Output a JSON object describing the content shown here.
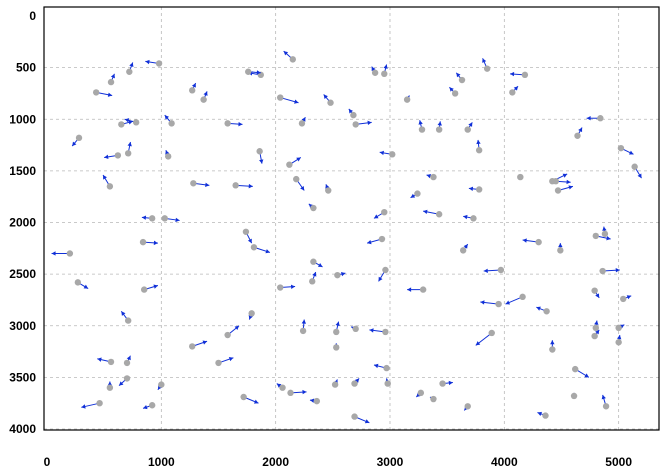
{
  "chart_data": {
    "type": "scatter",
    "title": "",
    "xlabel": "",
    "ylabel": "",
    "xlim": [
      0,
      5400
    ],
    "ylim": [
      4050,
      0
    ],
    "y_inverted": true,
    "grid": true,
    "x_ticks": [
      0,
      1000,
      2000,
      3000,
      4000,
      5000
    ],
    "x_tick_labels": [
      "0",
      "1000",
      "2000",
      "3000",
      "4000",
      "5000"
    ],
    "y_ticks": [
      0,
      500,
      1000,
      1500,
      2000,
      2500,
      3000,
      3500,
      4000
    ],
    "y_tick_labels": [
      "0",
      "500",
      "1000",
      "1500",
      "2000",
      "2500",
      "3000",
      "3500",
      "4000"
    ],
    "colors": {
      "marker": "#a8a8a8",
      "arrow": "#1030d8",
      "grid": "#b8b8b8",
      "frame": "#000000"
    },
    "points": [
      {
        "x": 980,
        "y": 460,
        "dx": -120,
        "dy": -20
      },
      {
        "x": 2150,
        "y": 420,
        "dx": -80,
        "dy": -80
      },
      {
        "x": 2950,
        "y": 560,
        "dx": 20,
        "dy": -90
      },
      {
        "x": 3850,
        "y": 510,
        "dx": -40,
        "dy": -100
      },
      {
        "x": 4180,
        "y": 570,
        "dx": -130,
        "dy": -10
      },
      {
        "x": 720,
        "y": 540,
        "dx": 30,
        "dy": -90
      },
      {
        "x": 560,
        "y": 640,
        "dx": 30,
        "dy": -80
      },
      {
        "x": 1870,
        "y": 570,
        "dx": -110,
        "dy": -20
      },
      {
        "x": 1760,
        "y": 540,
        "dx": 110,
        "dy": 10
      },
      {
        "x": 2870,
        "y": 550,
        "dx": -30,
        "dy": -60
      },
      {
        "x": 3630,
        "y": 620,
        "dx": -50,
        "dy": -70
      },
      {
        "x": 430,
        "y": 740,
        "dx": 140,
        "dy": 30
      },
      {
        "x": 1270,
        "y": 720,
        "dx": 30,
        "dy": -70
      },
      {
        "x": 1370,
        "y": 810,
        "dx": 30,
        "dy": -80
      },
      {
        "x": 2040,
        "y": 790,
        "dx": 160,
        "dy": 50
      },
      {
        "x": 2480,
        "y": 840,
        "dx": -60,
        "dy": -80
      },
      {
        "x": 3150,
        "y": 810,
        "dx": 20,
        "dy": -40
      },
      {
        "x": 3570,
        "y": 750,
        "dx": -50,
        "dy": -60
      },
      {
        "x": 4070,
        "y": 740,
        "dx": 50,
        "dy": -60
      },
      {
        "x": 650,
        "y": 1050,
        "dx": 100,
        "dy": -30
      },
      {
        "x": 780,
        "y": 1030,
        "dx": -100,
        "dy": -30
      },
      {
        "x": 1090,
        "y": 1040,
        "dx": -60,
        "dy": -80
      },
      {
        "x": 1580,
        "y": 1040,
        "dx": 130,
        "dy": 10
      },
      {
        "x": 2230,
        "y": 1040,
        "dx": 30,
        "dy": -60
      },
      {
        "x": 2680,
        "y": 960,
        "dx": -40,
        "dy": -60
      },
      {
        "x": 2700,
        "y": 1050,
        "dx": 140,
        "dy": -20
      },
      {
        "x": 3280,
        "y": 1100,
        "dx": -20,
        "dy": -90
      },
      {
        "x": 3430,
        "y": 1100,
        "dx": 10,
        "dy": -80
      },
      {
        "x": 3680,
        "y": 1100,
        "dx": 40,
        "dy": -70
      },
      {
        "x": 4840,
        "y": 990,
        "dx": -120,
        "dy": 0
      },
      {
        "x": 4640,
        "y": 1160,
        "dx": 40,
        "dy": -80
      },
      {
        "x": 280,
        "y": 1180,
        "dx": -60,
        "dy": 80
      },
      {
        "x": 620,
        "y": 1350,
        "dx": -120,
        "dy": 20
      },
      {
        "x": 710,
        "y": 1330,
        "dx": 20,
        "dy": -110
      },
      {
        "x": 1060,
        "y": 1360,
        "dx": -20,
        "dy": -60
      },
      {
        "x": 1860,
        "y": 1310,
        "dx": 20,
        "dy": 120
      },
      {
        "x": 3020,
        "y": 1340,
        "dx": -110,
        "dy": -20
      },
      {
        "x": 3780,
        "y": 1300,
        "dx": -10,
        "dy": -100
      },
      {
        "x": 5020,
        "y": 1280,
        "dx": 110,
        "dy": 60
      },
      {
        "x": 5140,
        "y": 1460,
        "dx": 60,
        "dy": 110
      },
      {
        "x": 550,
        "y": 1650,
        "dx": -60,
        "dy": -110
      },
      {
        "x": 1650,
        "y": 1640,
        "dx": 150,
        "dy": 10
      },
      {
        "x": 1280,
        "y": 1620,
        "dx": 140,
        "dy": 20
      },
      {
        "x": 2180,
        "y": 1580,
        "dx": 70,
        "dy": 110
      },
      {
        "x": 2120,
        "y": 1440,
        "dx": 100,
        "dy": -70
      },
      {
        "x": 2460,
        "y": 1690,
        "dx": -20,
        "dy": -60
      },
      {
        "x": 3380,
        "y": 1560,
        "dx": -60,
        "dy": -20
      },
      {
        "x": 3240,
        "y": 1720,
        "dx": -60,
        "dy": 40
      },
      {
        "x": 3780,
        "y": 1680,
        "dx": -90,
        "dy": -10
      },
      {
        "x": 4140,
        "y": 1560,
        "dx": -20,
        "dy": 20
      },
      {
        "x": 4420,
        "y": 1600,
        "dx": 130,
        "dy": -70
      },
      {
        "x": 4450,
        "y": 1600,
        "dx": 130,
        "dy": 10
      },
      {
        "x": 4470,
        "y": 1690,
        "dx": 130,
        "dy": -40
      },
      {
        "x": 2950,
        "y": 1900,
        "dx": -90,
        "dy": 60
      },
      {
        "x": 2330,
        "y": 1860,
        "dx": -40,
        "dy": -40
      },
      {
        "x": 3430,
        "y": 1920,
        "dx": -140,
        "dy": -30
      },
      {
        "x": 3730,
        "y": 1960,
        "dx": -90,
        "dy": -20
      },
      {
        "x": 920,
        "y": 1960,
        "dx": -90,
        "dy": -10
      },
      {
        "x": 1030,
        "y": 1960,
        "dx": 130,
        "dy": 20
      },
      {
        "x": 840,
        "y": 2190,
        "dx": 130,
        "dy": 10
      },
      {
        "x": 1740,
        "y": 2090,
        "dx": 50,
        "dy": 110
      },
      {
        "x": 1810,
        "y": 2240,
        "dx": 140,
        "dy": 50
      },
      {
        "x": 2930,
        "y": 2160,
        "dx": -130,
        "dy": 40
      },
      {
        "x": 3640,
        "y": 2270,
        "dx": 40,
        "dy": -60
      },
      {
        "x": 4300,
        "y": 2190,
        "dx": -140,
        "dy": -20
      },
      {
        "x": 4490,
        "y": 2270,
        "dx": 0,
        "dy": -70
      },
      {
        "x": 4800,
        "y": 2130,
        "dx": 130,
        "dy": 30
      },
      {
        "x": 4880,
        "y": 2110,
        "dx": -10,
        "dy": -70
      },
      {
        "x": 200,
        "y": 2300,
        "dx": -160,
        "dy": 0
      },
      {
        "x": 270,
        "y": 2580,
        "dx": 90,
        "dy": 60
      },
      {
        "x": 850,
        "y": 2650,
        "dx": 120,
        "dy": -40
      },
      {
        "x": 2330,
        "y": 2380,
        "dx": 80,
        "dy": 50
      },
      {
        "x": 2320,
        "y": 2570,
        "dx": 30,
        "dy": -90
      },
      {
        "x": 2540,
        "y": 2510,
        "dx": 70,
        "dy": -20
      },
      {
        "x": 2960,
        "y": 2460,
        "dx": -60,
        "dy": 110
      },
      {
        "x": 3970,
        "y": 2460,
        "dx": -150,
        "dy": 10
      },
      {
        "x": 3290,
        "y": 2650,
        "dx": -140,
        "dy": 0
      },
      {
        "x": 4160,
        "y": 2720,
        "dx": -150,
        "dy": 70
      },
      {
        "x": 3950,
        "y": 2790,
        "dx": -160,
        "dy": -20
      },
      {
        "x": 4860,
        "y": 2470,
        "dx": 150,
        "dy": -10
      },
      {
        "x": 4790,
        "y": 2660,
        "dx": 40,
        "dy": 70
      },
      {
        "x": 5040,
        "y": 2740,
        "dx": 70,
        "dy": -30
      },
      {
        "x": 2040,
        "y": 2630,
        "dx": 130,
        "dy": -10
      },
      {
        "x": 710,
        "y": 2950,
        "dx": -60,
        "dy": -90
      },
      {
        "x": 1790,
        "y": 2880,
        "dx": -20,
        "dy": 60
      },
      {
        "x": 1580,
        "y": 3090,
        "dx": 100,
        "dy": -90
      },
      {
        "x": 1270,
        "y": 3200,
        "dx": 130,
        "dy": -50
      },
      {
        "x": 1500,
        "y": 3360,
        "dx": 130,
        "dy": -50
      },
      {
        "x": 2240,
        "y": 3050,
        "dx": 10,
        "dy": -110
      },
      {
        "x": 2530,
        "y": 3060,
        "dx": 20,
        "dy": -100
      },
      {
        "x": 2700,
        "y": 3030,
        "dx": -40,
        "dy": -20
      },
      {
        "x": 2530,
        "y": 3210,
        "dx": 0,
        "dy": -40
      },
      {
        "x": 2960,
        "y": 3060,
        "dx": -140,
        "dy": -20
      },
      {
        "x": 3890,
        "y": 3070,
        "dx": -140,
        "dy": 120
      },
      {
        "x": 4370,
        "y": 2860,
        "dx": -90,
        "dy": -40
      },
      {
        "x": 4420,
        "y": 3230,
        "dx": 0,
        "dy": -90
      },
      {
        "x": 4800,
        "y": 3020,
        "dx": 10,
        "dy": -70
      },
      {
        "x": 4790,
        "y": 3100,
        "dx": 40,
        "dy": -60
      },
      {
        "x": 5000,
        "y": 3020,
        "dx": 50,
        "dy": -30
      },
      {
        "x": 5000,
        "y": 3160,
        "dx": 10,
        "dy": -70
      },
      {
        "x": 560,
        "y": 3350,
        "dx": -120,
        "dy": -30
      },
      {
        "x": 700,
        "y": 3360,
        "dx": 30,
        "dy": -70
      },
      {
        "x": 700,
        "y": 3510,
        "dx": -70,
        "dy": 70
      },
      {
        "x": 550,
        "y": 3600,
        "dx": 0,
        "dy": -60
      },
      {
        "x": 460,
        "y": 3750,
        "dx": -160,
        "dy": 40
      },
      {
        "x": 1000,
        "y": 3570,
        "dx": -30,
        "dy": 50
      },
      {
        "x": 920,
        "y": 3770,
        "dx": -80,
        "dy": 30
      },
      {
        "x": 1720,
        "y": 3690,
        "dx": 130,
        "dy": 60
      },
      {
        "x": 2060,
        "y": 3600,
        "dx": -50,
        "dy": -40
      },
      {
        "x": 2130,
        "y": 3650,
        "dx": 140,
        "dy": -10
      },
      {
        "x": 2360,
        "y": 3730,
        "dx": -60,
        "dy": -10
      },
      {
        "x": 2520,
        "y": 3570,
        "dx": 20,
        "dy": -50
      },
      {
        "x": 2690,
        "y": 3560,
        "dx": 40,
        "dy": -50
      },
      {
        "x": 2970,
        "y": 3410,
        "dx": -110,
        "dy": -30
      },
      {
        "x": 2980,
        "y": 3560,
        "dx": -10,
        "dy": -50
      },
      {
        "x": 3270,
        "y": 3650,
        "dx": -40,
        "dy": 40
      },
      {
        "x": 3380,
        "y": 3710,
        "dx": -30,
        "dy": -20
      },
      {
        "x": 3460,
        "y": 3560,
        "dx": 90,
        "dy": -10
      },
      {
        "x": 3680,
        "y": 3780,
        "dx": -30,
        "dy": 40
      },
      {
        "x": 4360,
        "y": 3870,
        "dx": -70,
        "dy": -30
      },
      {
        "x": 4620,
        "y": 3420,
        "dx": 120,
        "dy": 80
      },
      {
        "x": 4610,
        "y": 3680,
        "dx": 0,
        "dy": -30
      },
      {
        "x": 4890,
        "y": 3780,
        "dx": -30,
        "dy": -110
      },
      {
        "x": 2690,
        "y": 3880,
        "dx": 130,
        "dy": 60
      }
    ]
  }
}
